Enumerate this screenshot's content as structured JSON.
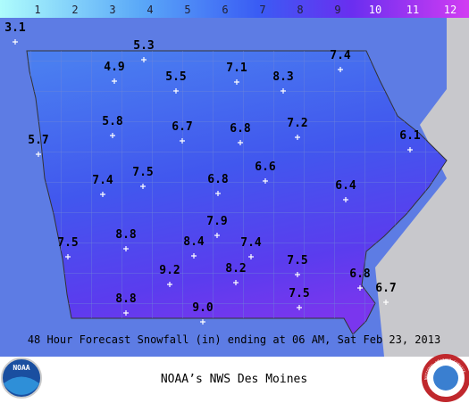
{
  "colorbar": {
    "labels": [
      1,
      2,
      3,
      4,
      5,
      6,
      7,
      8,
      9,
      10,
      11,
      12
    ]
  },
  "stations": [
    {
      "value": "3.1"
    },
    {
      "value": "5.3"
    },
    {
      "value": "4.9"
    },
    {
      "value": "5.5"
    },
    {
      "value": "7.1"
    },
    {
      "value": "8.3"
    },
    {
      "value": "7.4"
    },
    {
      "value": "5.8"
    },
    {
      "value": "6.7"
    },
    {
      "value": "6.8"
    },
    {
      "value": "7.2"
    },
    {
      "value": "6.1"
    },
    {
      "value": "5.7"
    },
    {
      "value": "7.4"
    },
    {
      "value": "7.5"
    },
    {
      "value": "6.8"
    },
    {
      "value": "6.6"
    },
    {
      "value": "6.4"
    },
    {
      "value": "7.9"
    },
    {
      "value": "7.5"
    },
    {
      "value": "8.8"
    },
    {
      "value": "8.4"
    },
    {
      "value": "7.4"
    },
    {
      "value": "9.2"
    },
    {
      "value": "8.2"
    },
    {
      "value": "7.5"
    },
    {
      "value": "6.8"
    },
    {
      "value": "6.7"
    },
    {
      "value": "8.8"
    },
    {
      "value": "9.0"
    },
    {
      "value": "7.5"
    }
  ],
  "caption": "48 Hour Forecast Snowfall (in) ending at 06 AM, Sat Feb 23, 2013",
  "footer": {
    "title": "NOAA’s NWS Des Moines",
    "left_logo": "NOAA",
    "right_logo": "NATIONAL WEATHER SERVICE"
  }
}
